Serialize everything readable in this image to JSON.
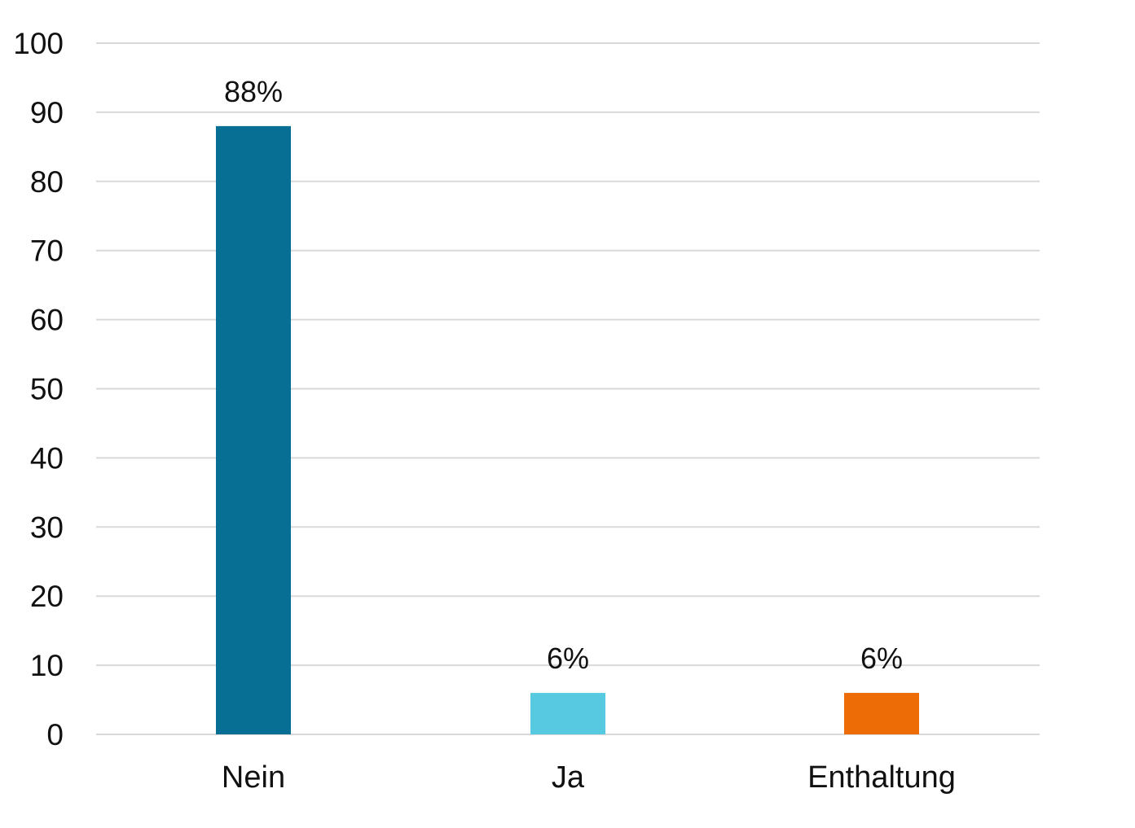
{
  "chart_data": {
    "type": "bar",
    "title": "",
    "xlabel": "",
    "ylabel": "",
    "categories": [
      "Nein",
      "Ja",
      "Enthaltung"
    ],
    "values": [
      88,
      6,
      6
    ],
    "data_labels": [
      "88%",
      "6%",
      "6%"
    ],
    "colors": [
      "#076f93",
      "#57cae2",
      "#ee6c06"
    ],
    "ylim": [
      0,
      100
    ],
    "yticks": [
      0,
      10,
      20,
      30,
      40,
      50,
      60,
      70,
      80,
      90,
      100
    ],
    "grid": true,
    "legend": "none"
  },
  "style": {
    "grid_color": "#d9d9d9",
    "text_color": "#111111"
  }
}
